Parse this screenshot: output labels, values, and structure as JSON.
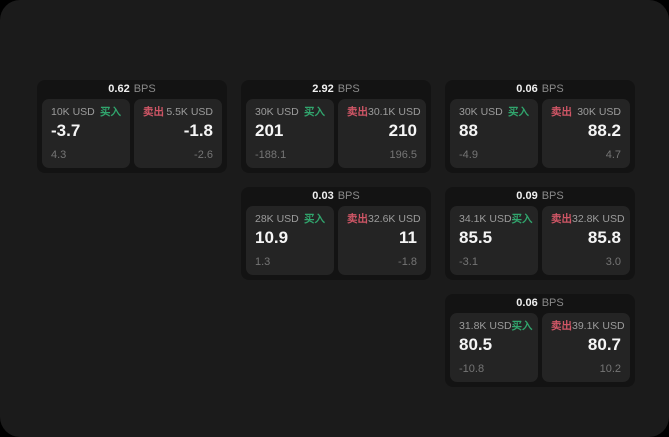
{
  "window": {
    "bg_outside": "#000000",
    "bg_page": "#1b1b1b"
  },
  "labels": {
    "bps_unit": "BPS",
    "buy": "买入",
    "sell": "卖出"
  },
  "colors": {
    "buy_green": "#31a56d",
    "sell_red": "#d05666",
    "card_bg": "#131313",
    "panel_bg": "#242424",
    "text_primary": "#f5f5f5",
    "text_secondary": "#9c9c9c",
    "text_muted": "#757575"
  },
  "cards": [
    {
      "bps": "0.62",
      "buy": {
        "amount": "10K USD",
        "price": "-3.7",
        "delta": "4.3"
      },
      "sell": {
        "amount": "5.5K USD",
        "price": "-1.8",
        "delta": "-2.6"
      }
    },
    {
      "bps": "2.92",
      "buy": {
        "amount": "30K USD",
        "price": "201",
        "delta": "-188.1"
      },
      "sell": {
        "amount": "30.1K USD",
        "price": "210",
        "delta": "196.5"
      }
    },
    {
      "bps": "0.06",
      "buy": {
        "amount": "30K USD",
        "price": "88",
        "delta": "-4.9"
      },
      "sell": {
        "amount": "30K USD",
        "price": "88.2",
        "delta": "4.7"
      }
    },
    {
      "bps": "0.03",
      "buy": {
        "amount": "28K USD",
        "price": "10.9",
        "delta": "1.3"
      },
      "sell": {
        "amount": "32.6K USD",
        "price": "11",
        "delta": "-1.8"
      }
    },
    {
      "bps": "0.09",
      "buy": {
        "amount": "34.1K USD",
        "price": "85.5",
        "delta": "-3.1"
      },
      "sell": {
        "amount": "32.8K USD",
        "price": "85.8",
        "delta": "3.0"
      }
    },
    {
      "bps": "0.06",
      "buy": {
        "amount": "31.8K USD",
        "price": "80.5",
        "delta": "-10.8"
      },
      "sell": {
        "amount": "39.1K USD",
        "price": "80.7",
        "delta": "10.2"
      }
    }
  ]
}
